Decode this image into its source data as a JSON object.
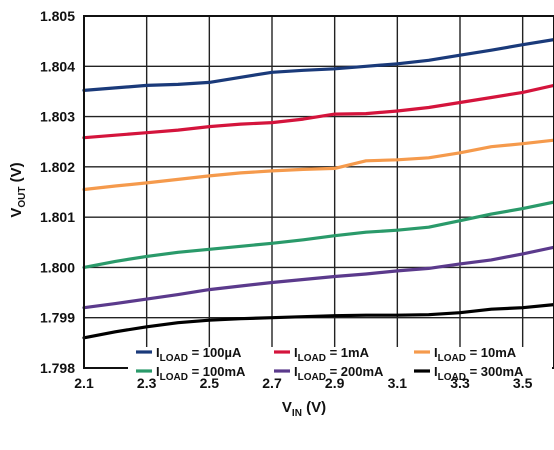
{
  "chart_data": {
    "type": "line",
    "xlabel": {
      "main": "V",
      "sub": "IN",
      "suffix": " (V)"
    },
    "ylabel": {
      "main": "V",
      "sub": "OUT",
      "suffix": " (V)"
    },
    "xlim": [
      2.1,
      3.6
    ],
    "ylim": [
      1.798,
      1.805
    ],
    "x_ticks": [
      "2.1",
      "2.3",
      "2.5",
      "2.7",
      "2.9",
      "3.1",
      "3.3",
      "3.5"
    ],
    "x_tick_values": [
      2.1,
      2.3,
      2.5,
      2.7,
      2.9,
      3.1,
      3.3,
      3.5
    ],
    "y_ticks": [
      "1.805",
      "1.804",
      "1.803",
      "1.802",
      "1.801",
      "1.800",
      "1.799",
      "1.798"
    ],
    "y_tick_values": [
      1.805,
      1.804,
      1.803,
      1.802,
      1.801,
      1.8,
      1.799,
      1.798
    ],
    "grid": true,
    "legend_position": "bottom-right",
    "x": [
      2.1,
      2.2,
      2.3,
      2.4,
      2.5,
      2.6,
      2.7,
      2.8,
      2.9,
      3.0,
      3.1,
      3.2,
      3.3,
      3.4,
      3.5,
      3.6
    ],
    "series": [
      {
        "name": {
          "main": "I",
          "sub": "LOAD",
          "suffix": " = 100µA"
        },
        "color": "#1a3a7a",
        "values": [
          1.80352,
          1.80357,
          1.80362,
          1.80364,
          1.80368,
          1.80378,
          1.80388,
          1.80392,
          1.80395,
          1.804,
          1.80405,
          1.80412,
          1.80422,
          1.80432,
          1.80443,
          1.80453
        ]
      },
      {
        "name": {
          "main": "I",
          "sub": "LOAD",
          "suffix": " = 1mA"
        },
        "color": "#d4143c",
        "values": [
          1.80258,
          1.80263,
          1.80268,
          1.80273,
          1.8028,
          1.80285,
          1.80288,
          1.80295,
          1.80305,
          1.80306,
          1.80311,
          1.80318,
          1.80328,
          1.80338,
          1.80348,
          1.80362
        ]
      },
      {
        "name": {
          "main": "I",
          "sub": "LOAD",
          "suffix": " = 10mA"
        },
        "color": "#f59a4c",
        "values": [
          1.80155,
          1.80162,
          1.80168,
          1.80175,
          1.80182,
          1.80188,
          1.80192,
          1.80195,
          1.80197,
          1.80212,
          1.80214,
          1.80218,
          1.80228,
          1.8024,
          1.80246,
          1.80253
        ]
      },
      {
        "name": {
          "main": "I",
          "sub": "LOAD",
          "suffix": " = 100mA"
        },
        "color": "#2a9a6a",
        "values": [
          1.8,
          1.80012,
          1.80022,
          1.8003,
          1.80036,
          1.80042,
          1.80048,
          1.80055,
          1.80063,
          1.8007,
          1.80074,
          1.8008,
          1.80093,
          1.80106,
          1.80117,
          1.8013
        ]
      },
      {
        "name": {
          "main": "I",
          "sub": "LOAD",
          "suffix": " = 200mA"
        },
        "color": "#5b3a8c",
        "values": [
          1.7992,
          1.79928,
          1.79937,
          1.79946,
          1.79956,
          1.79963,
          1.7997,
          1.79976,
          1.79982,
          1.79987,
          1.79993,
          1.79998,
          1.80007,
          1.80015,
          1.80027,
          1.8004
        ]
      },
      {
        "name": {
          "main": "I",
          "sub": "LOAD",
          "suffix": " = 300mA"
        },
        "color": "#000000",
        "values": [
          1.7986,
          1.79872,
          1.79882,
          1.7989,
          1.79895,
          1.79898,
          1.799,
          1.79902,
          1.79904,
          1.79905,
          1.79905,
          1.79906,
          1.7991,
          1.79917,
          1.7992,
          1.79926
        ]
      }
    ]
  }
}
